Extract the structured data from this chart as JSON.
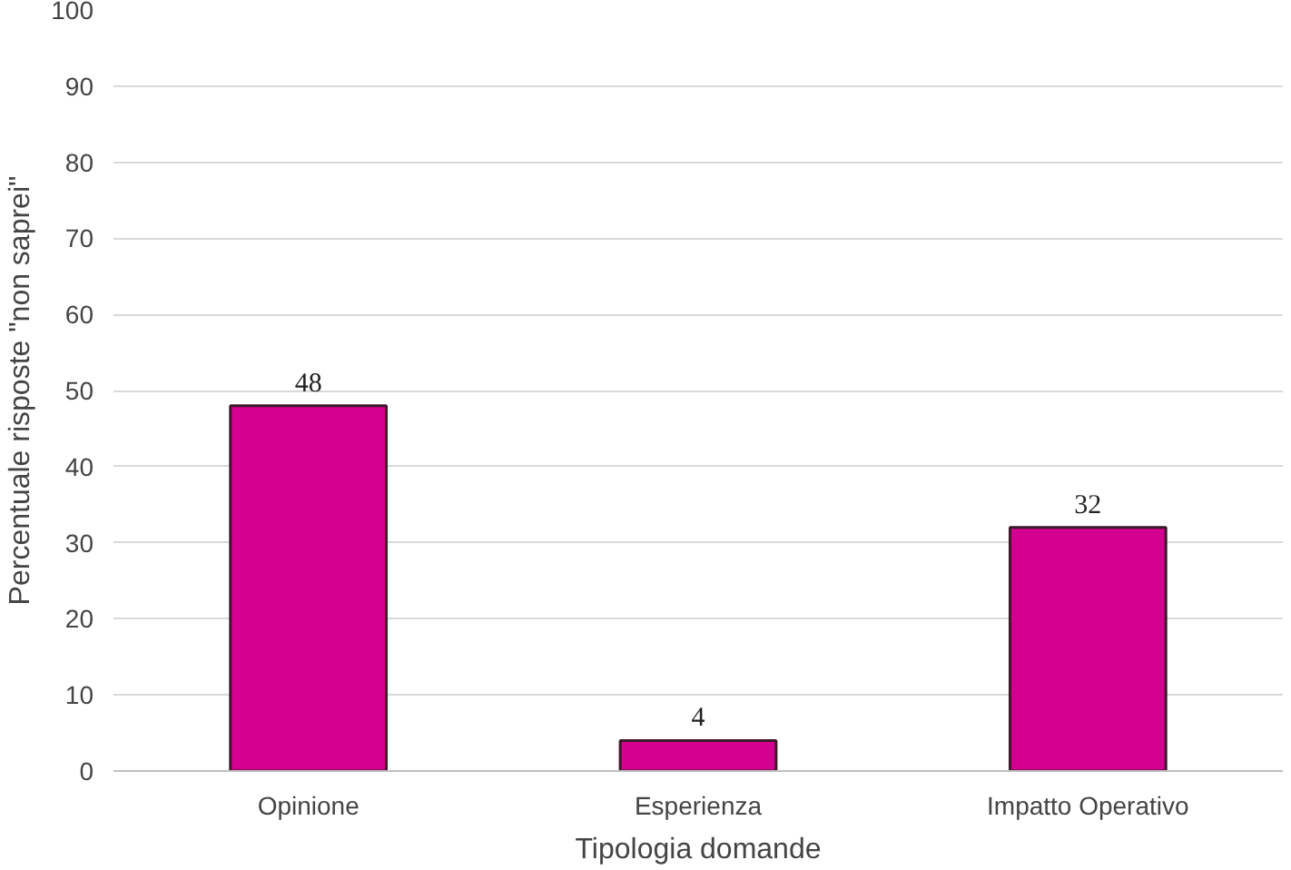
{
  "chart_data": {
    "type": "bar",
    "xlabel": "Tipologia domande",
    "ylabel": "Percentuale risposte \"non saprei\"",
    "categories": [
      "Opinione",
      "Esperienza",
      "Impatto Operativo"
    ],
    "values": [
      48,
      4,
      32
    ],
    "color": "#d4008f",
    "ylim": [
      0,
      100
    ],
    "yticks": [
      0,
      10,
      20,
      30,
      40,
      50,
      60,
      70,
      80,
      90,
      100
    ],
    "grid": "y",
    "data_labels": true
  }
}
